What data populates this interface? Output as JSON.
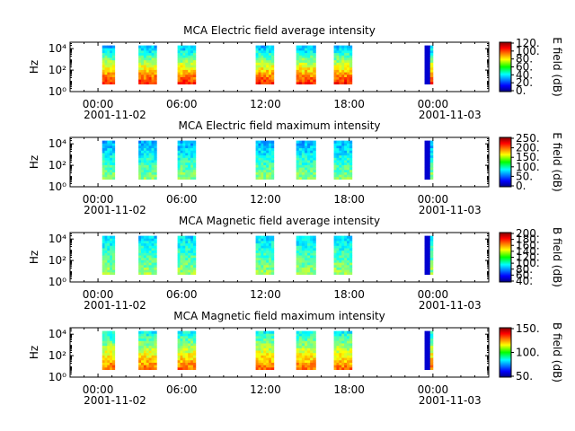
{
  "figure": {
    "time_ticks": [
      "00:00",
      "06:00",
      "12:00",
      "18:00",
      "00:00"
    ],
    "date_start": "2001-11-02",
    "date_end": "2001-11-03"
  },
  "panels": [
    {
      "title": "MCA  Electric field average intensity",
      "ylabel": "Hz",
      "ytick_labels": [
        "10⁰",
        "10²",
        "10⁴"
      ],
      "colorbar_label": "E field (dB)",
      "colorbar_ticks": [
        "120.",
        "100.",
        "80.",
        "60.",
        "40.",
        "20.",
        "0."
      ],
      "colormap_order": "low-blue-to-high-red"
    },
    {
      "title": "MCA  Electric field maximum intensity",
      "ylabel": "Hz",
      "ytick_labels": [
        "10⁰",
        "10²",
        "10⁴"
      ],
      "colorbar_label": "E field (dB)",
      "colorbar_ticks": [
        "250.",
        "200.",
        "150.",
        "100.",
        "50.",
        "0."
      ]
    },
    {
      "title": "MCA  Magnetic field average intensity",
      "ylabel": "Hz",
      "ytick_labels": [
        "10⁰",
        "10²",
        "10⁴"
      ],
      "colorbar_label": "B field (dB)",
      "colorbar_ticks": [
        "200.",
        "180.",
        "160.",
        "140.",
        "120.",
        "100.",
        "80.",
        "60.",
        "40."
      ]
    },
    {
      "title": "MCA  Magnetic field maximum intensity",
      "ylabel": "Hz",
      "ytick_labels": [
        "10⁰",
        "10²",
        "10⁴"
      ],
      "colorbar_label": "B field (dB)",
      "colorbar_ticks": [
        "150.",
        "100.",
        "50."
      ]
    }
  ],
  "chart_data": {
    "type": "heatmap",
    "x_unit": "hours since 2001-11-02 00:00",
    "xlim": [
      -2,
      28
    ],
    "y_scale": "log",
    "ylim_hz": [
      1,
      40000
    ],
    "data_intervals_hours": [
      [
        0.3,
        1.2
      ],
      [
        2.9,
        4.2
      ],
      [
        5.7,
        7.0
      ],
      [
        11.3,
        12.6
      ],
      [
        14.2,
        15.6
      ],
      [
        16.9,
        18.2
      ],
      [
        23.4,
        24.0
      ]
    ],
    "panels": [
      {
        "name": "E average",
        "clim": [
          0,
          130
        ],
        "low_hz_db": 110,
        "high_hz_db": 40
      },
      {
        "name": "E maximum",
        "clim": [
          0,
          270
        ],
        "low_hz_db": 140,
        "high_hz_db": 80
      },
      {
        "name": "B average",
        "clim": [
          40,
          200
        ],
        "low_hz_db": 125,
        "high_hz_db": 95
      },
      {
        "name": "B maximum",
        "clim": [
          20,
          190
        ],
        "low_hz_db": 150,
        "high_hz_db": 85
      }
    ]
  }
}
